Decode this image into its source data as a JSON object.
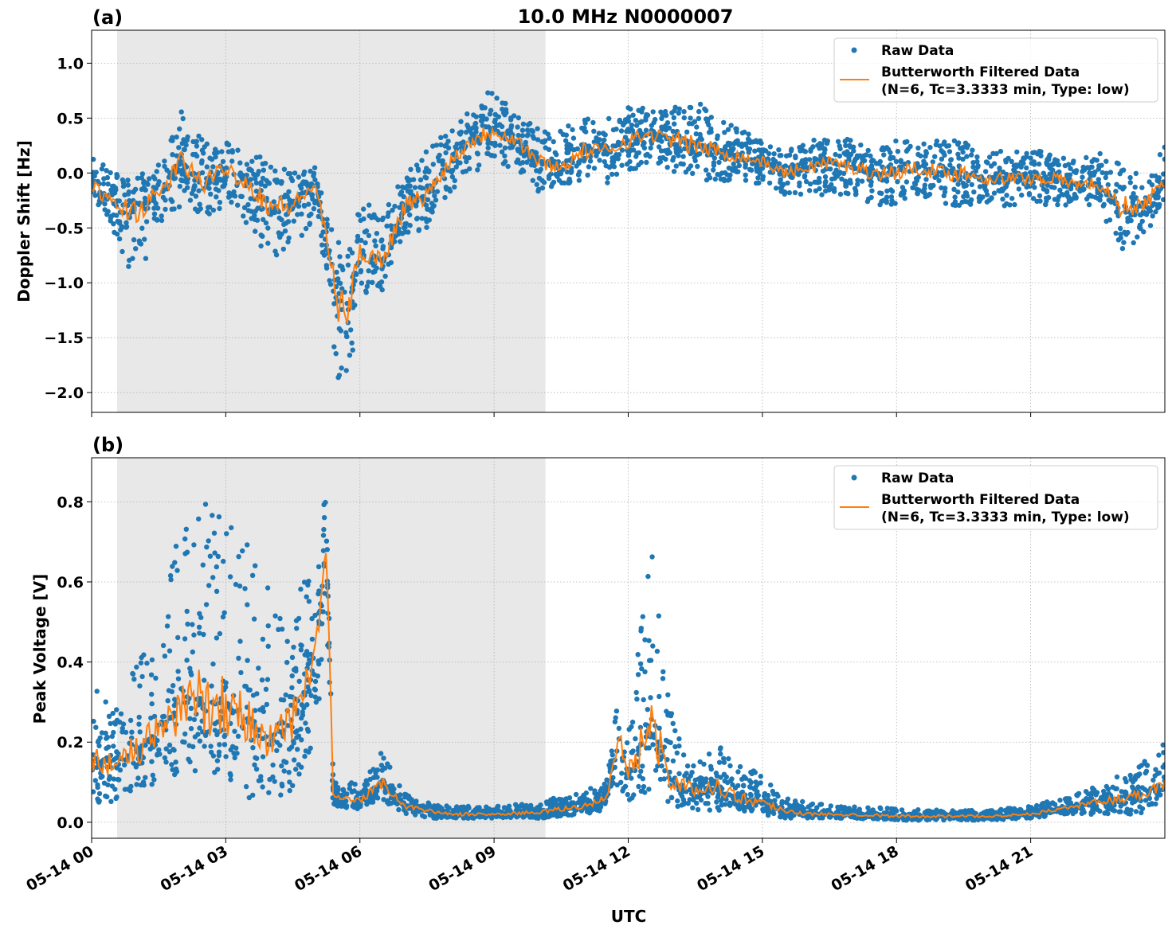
{
  "chart_data": [
    {
      "type": "scatter",
      "panel_label": "(a)",
      "title": "10.0 MHz N0000007",
      "xlabel": "",
      "ylabel": "Doppler Shift [Hz]",
      "x_unit": "hours UTC on 05-14",
      "xlim": [
        0,
        24
      ],
      "ylim": [
        -2.18,
        1.3
      ],
      "xticks": [
        0,
        3,
        6,
        9,
        12,
        15,
        18,
        21
      ],
      "xtick_labels": [
        "05-14 00",
        "05-14 03",
        "05-14 06",
        "05-14 09",
        "05-14 12",
        "05-14 15",
        "05-14 18",
        "05-14 21"
      ],
      "yticks": [
        1.0,
        0.5,
        0.0,
        -0.5,
        -1.0,
        -1.5,
        -2.0
      ],
      "ytick_labels": [
        "1.0",
        "0.5",
        "0.0",
        "−0.5",
        "−1.0",
        "−1.5",
        "−2.0"
      ],
      "grid": true,
      "shaded_interval": [
        0.57,
        10.15
      ],
      "shade_color": "#e8e8e8",
      "legend_position": "top-right",
      "legend": [
        "Raw Data",
        "Butterworth Filtered Data",
        "(N=6, Tc=3.3333 min, Type: low)"
      ],
      "series": [
        {
          "name": "Raw Data",
          "kind": "scatter",
          "color": "#1f77b4",
          "x": [
            0,
            0.5,
            1,
            1.5,
            2,
            2.5,
            3,
            3.5,
            4,
            4.5,
            5,
            5.25,
            5.5,
            5.75,
            6,
            6.5,
            7,
            7.5,
            8,
            8.5,
            9,
            9.5,
            10,
            10.5,
            11,
            11.5,
            12,
            12.5,
            13,
            13.5,
            14,
            14.5,
            15,
            15.5,
            16,
            16.5,
            17,
            17.5,
            18,
            18.5,
            19,
            19.5,
            20,
            20.5,
            21,
            21.5,
            22,
            22.5,
            23,
            23.5,
            24
          ],
          "low": [
            -0.3,
            -0.6,
            -1.0,
            -0.5,
            -0.3,
            -0.4,
            -0.3,
            -0.5,
            -0.8,
            -0.7,
            -0.4,
            -0.9,
            -1.9,
            -1.9,
            -1.1,
            -1.1,
            -0.6,
            -0.5,
            -0.2,
            0.0,
            0.1,
            0.0,
            -0.2,
            -0.1,
            -0.1,
            -0.1,
            0.0,
            0.1,
            0.0,
            -0.05,
            -0.1,
            -0.1,
            -0.1,
            -0.2,
            -0.2,
            -0.2,
            -0.2,
            -0.3,
            -0.3,
            -0.2,
            -0.3,
            -0.3,
            -0.3,
            -0.3,
            -0.3,
            -0.3,
            -0.3,
            -0.3,
            -0.7,
            -0.6,
            -0.3
          ],
          "high": [
            0.2,
            0.0,
            -0.05,
            0.1,
            0.6,
            0.3,
            0.3,
            0.2,
            0.1,
            0.0,
            0.1,
            -0.3,
            -0.6,
            -0.7,
            -0.2,
            -0.4,
            0.1,
            0.2,
            0.4,
            0.6,
            0.8,
            0.6,
            0.4,
            0.4,
            0.5,
            0.5,
            0.6,
            0.6,
            0.6,
            0.7,
            0.5,
            0.4,
            0.3,
            0.2,
            0.3,
            0.4,
            0.3,
            0.2,
            0.3,
            0.3,
            0.3,
            0.3,
            0.2,
            0.2,
            0.2,
            0.2,
            0.1,
            0.2,
            0.1,
            0.0,
            0.3
          ]
        },
        {
          "name": "Butterworth Filtered Data (N=6, Tc=3.3333 min, Type: low)",
          "kind": "line",
          "color": "#ff7f0e",
          "x": [
            0,
            0.5,
            1,
            1.5,
            2,
            2.5,
            3,
            3.5,
            4,
            4.5,
            5,
            5.25,
            5.5,
            5.75,
            6,
            6.5,
            7,
            7.5,
            8,
            8.5,
            9,
            9.5,
            10,
            10.5,
            11,
            11.5,
            12,
            12.5,
            13,
            13.5,
            14,
            14.5,
            15,
            15.5,
            16,
            16.5,
            17,
            17.5,
            18,
            18.5,
            19,
            19.5,
            20,
            20.5,
            21,
            21.5,
            22,
            22.5,
            23,
            23.5,
            24
          ],
          "y": [
            -0.1,
            -0.3,
            -0.35,
            -0.2,
            0.1,
            -0.1,
            0.05,
            -0.1,
            -0.3,
            -0.3,
            -0.1,
            -0.6,
            -1.2,
            -1.25,
            -0.7,
            -0.8,
            -0.3,
            -0.2,
            0.1,
            0.3,
            0.4,
            0.3,
            0.1,
            0.05,
            0.2,
            0.2,
            0.3,
            0.35,
            0.3,
            0.25,
            0.2,
            0.15,
            0.1,
            0.0,
            0.05,
            0.1,
            0.05,
            0.0,
            0.0,
            0.05,
            0.0,
            0.0,
            -0.05,
            -0.05,
            -0.05,
            -0.05,
            -0.1,
            -0.1,
            -0.3,
            -0.3,
            -0.1
          ]
        }
      ]
    },
    {
      "type": "scatter",
      "panel_label": "(b)",
      "title": "",
      "xlabel": "UTC",
      "ylabel": "Peak Voltage [V]",
      "x_unit": "hours UTC on 05-14",
      "xlim": [
        0,
        24
      ],
      "ylim": [
        -0.04,
        0.91
      ],
      "xticks": [
        0,
        3,
        6,
        9,
        12,
        15,
        18,
        21
      ],
      "xtick_labels": [
        "05-14 00",
        "05-14 03",
        "05-14 06",
        "05-14 09",
        "05-14 12",
        "05-14 15",
        "05-14 18",
        "05-14 21"
      ],
      "yticks": [
        0.8,
        0.6,
        0.4,
        0.2,
        0.0
      ],
      "ytick_labels": [
        "0.8",
        "0.6",
        "0.4",
        "0.2",
        "0.0"
      ],
      "grid": true,
      "shaded_interval": [
        0.57,
        10.15
      ],
      "shade_color": "#e8e8e8",
      "legend_position": "top-right",
      "legend": [
        "Raw Data",
        "Butterworth Filtered Data",
        "(N=6, Tc=3.3333 min, Type: low)"
      ],
      "series": [
        {
          "name": "Raw Data",
          "kind": "scatter",
          "color": "#1f77b4",
          "x": [
            0,
            0.5,
            1,
            1.5,
            2,
            2.5,
            3,
            3.5,
            4,
            4.5,
            5,
            5.25,
            5.4,
            5.5,
            6,
            6.5,
            7,
            7.5,
            8,
            9,
            10,
            11,
            11.5,
            11.8,
            12,
            12.5,
            13,
            13.5,
            14,
            14.5,
            15,
            15.5,
            16,
            17,
            18,
            19,
            20,
            21,
            22,
            23,
            23.5,
            24
          ],
          "low": [
            0.05,
            0.05,
            0.07,
            0.08,
            0.1,
            0.1,
            0.1,
            0.05,
            0.05,
            0.08,
            0.2,
            0.5,
            0.04,
            0.04,
            0.03,
            0.05,
            0.02,
            0.01,
            0.01,
            0.01,
            0.01,
            0.02,
            0.03,
            0.08,
            0.05,
            0.08,
            0.04,
            0.03,
            0.03,
            0.03,
            0.02,
            0.01,
            0.01,
            0.01,
            0.005,
            0.005,
            0.005,
            0.01,
            0.02,
            0.02,
            0.02,
            0.04
          ],
          "high": [
            0.35,
            0.3,
            0.4,
            0.5,
            0.75,
            0.8,
            0.75,
            0.7,
            0.6,
            0.55,
            0.65,
            0.85,
            0.12,
            0.1,
            0.1,
            0.18,
            0.07,
            0.05,
            0.04,
            0.04,
            0.05,
            0.08,
            0.1,
            0.35,
            0.25,
            0.7,
            0.25,
            0.14,
            0.2,
            0.15,
            0.12,
            0.06,
            0.05,
            0.04,
            0.035,
            0.03,
            0.03,
            0.04,
            0.07,
            0.12,
            0.15,
            0.2
          ]
        },
        {
          "name": "Butterworth Filtered Data (N=6, Tc=3.3333 min, Type: low)",
          "kind": "line",
          "color": "#ff7f0e",
          "x": [
            0,
            0.5,
            1,
            1.5,
            2,
            2.5,
            3,
            3.5,
            4,
            4.5,
            5,
            5.25,
            5.4,
            5.5,
            6,
            6.5,
            7,
            7.5,
            8,
            9,
            10,
            11,
            11.5,
            11.8,
            12,
            12.5,
            13,
            13.5,
            14,
            14.5,
            15,
            15.5,
            16,
            17,
            18,
            19,
            20,
            21,
            22,
            23,
            23.5,
            24
          ],
          "y": [
            0.15,
            0.15,
            0.18,
            0.22,
            0.3,
            0.3,
            0.3,
            0.25,
            0.2,
            0.25,
            0.4,
            0.7,
            0.08,
            0.06,
            0.05,
            0.1,
            0.04,
            0.03,
            0.02,
            0.02,
            0.025,
            0.04,
            0.06,
            0.2,
            0.12,
            0.25,
            0.1,
            0.08,
            0.09,
            0.06,
            0.05,
            0.03,
            0.02,
            0.02,
            0.015,
            0.015,
            0.015,
            0.02,
            0.04,
            0.06,
            0.07,
            0.1
          ]
        }
      ]
    }
  ]
}
